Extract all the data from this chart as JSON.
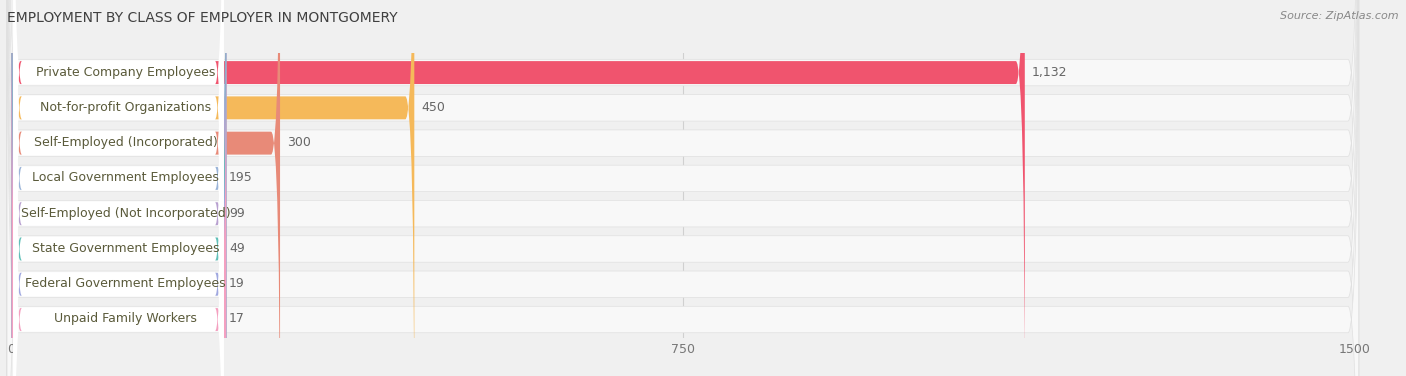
{
  "title": "EMPLOYMENT BY CLASS OF EMPLOYER IN MONTGOMERY",
  "source": "Source: ZipAtlas.com",
  "categories": [
    "Private Company Employees",
    "Not-for-profit Organizations",
    "Self-Employed (Incorporated)",
    "Local Government Employees",
    "Self-Employed (Not Incorporated)",
    "State Government Employees",
    "Federal Government Employees",
    "Unpaid Family Workers"
  ],
  "values": [
    1132,
    450,
    300,
    195,
    99,
    49,
    19,
    17
  ],
  "bar_colors": [
    "#f0546e",
    "#f5b95a",
    "#e88a78",
    "#9ab4d8",
    "#b8a0d0",
    "#60c0b8",
    "#a0a8e0",
    "#f4a0c0"
  ],
  "xlim_max": 1500,
  "xticks": [
    0,
    750,
    1500
  ],
  "bg_color": "#f0f0f0",
  "row_bg_color": "#ffffff",
  "label_text_color": "#5a5a3a",
  "value_text_color": "#666666",
  "title_color": "#404040",
  "source_color": "#888888",
  "title_fontsize": 10,
  "label_fontsize": 9,
  "value_fontsize": 9,
  "source_fontsize": 8,
  "tick_fontsize": 9
}
